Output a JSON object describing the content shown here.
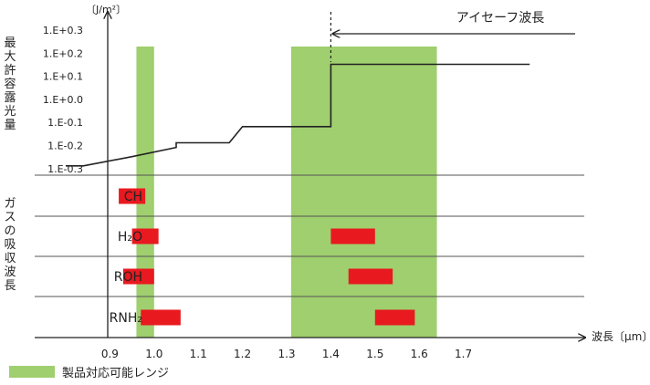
{
  "y_axis": {
    "unit": "〔J/m²〕",
    "title_chars": [
      "最",
      "大",
      "許",
      "容",
      "露",
      "光",
      "量"
    ],
    "ticks": [
      "1.E+0.3",
      "1.E+0.2",
      "1.E+0.1",
      "1.E+0.0",
      "1.E-0.1",
      "1.E-0.2",
      "1.E-0.3"
    ]
  },
  "gas_axis": {
    "title_chars": [
      "ガ",
      "ス",
      "の",
      "吸",
      "収",
      "波",
      "長"
    ]
  },
  "x_axis": {
    "unit": "波長〔μm〕",
    "ticks": [
      "0.9",
      "1.0",
      "1.1",
      "1.2",
      "1.3",
      "1.4",
      "1.5",
      "1.6",
      "1.7"
    ]
  },
  "eyesafe_label": "アイセーフ波長",
  "legend_label": "製品対応可能レンジ",
  "colors": {
    "range": "#9fcf6e",
    "band": "#e8191f",
    "line": "#222222",
    "grid": "#555555"
  },
  "product_ranges": [
    {
      "from": 0.96,
      "to": 1.0
    },
    {
      "from": 1.31,
      "to": 1.64
    }
  ],
  "exposure_curve": [
    {
      "x": 0.8,
      "y": -0.3
    },
    {
      "x": 0.84,
      "y": -0.3
    },
    {
      "x": 0.95,
      "y": -0.26
    },
    {
      "x": 1.05,
      "y": -0.22
    },
    {
      "x": 1.05,
      "y": -0.2
    },
    {
      "x": 1.17,
      "y": -0.2
    },
    {
      "x": 1.2,
      "y": -0.13
    },
    {
      "x": 1.4,
      "y": -0.13
    },
    {
      "x": 1.4,
      "y": 0.14
    },
    {
      "x": 1.85,
      "y": 0.14
    }
  ],
  "gases": [
    {
      "name": "CH",
      "bands": [
        {
          "from": 0.92,
          "to": 0.98
        }
      ]
    },
    {
      "name": "H₂O",
      "bands": [
        {
          "from": 0.95,
          "to": 1.01
        },
        {
          "from": 1.4,
          "to": 1.5
        }
      ]
    },
    {
      "name": "ROH",
      "bands": [
        {
          "from": 0.93,
          "to": 1.0
        },
        {
          "from": 1.44,
          "to": 1.54
        }
      ]
    },
    {
      "name": "RNH₂",
      "bands": [
        {
          "from": 0.97,
          "to": 1.06
        },
        {
          "from": 1.5,
          "to": 1.59
        }
      ]
    }
  ]
}
